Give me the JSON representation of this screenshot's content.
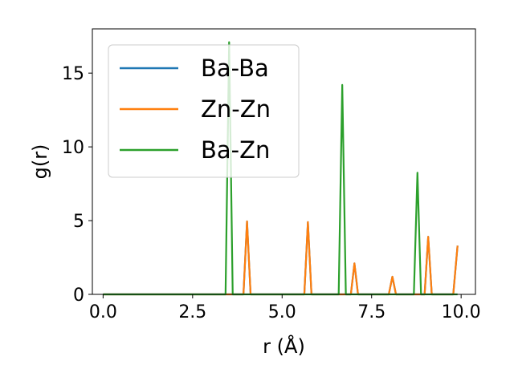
{
  "chart_data": {
    "type": "line",
    "xlabel": "r (Å)",
    "ylabel": "g(r)",
    "xlim": [
      -0.3,
      10.4
    ],
    "ylim": [
      0,
      18
    ],
    "xticks": [
      0.0,
      2.5,
      5.0,
      7.5,
      10.0
    ],
    "xtick_labels": [
      "0.0",
      "2.5",
      "5.0",
      "7.5",
      "10.0"
    ],
    "yticks": [
      0,
      5,
      10,
      15
    ],
    "ytick_labels": [
      "0",
      "5",
      "10",
      "15"
    ],
    "grid": false,
    "legend": "upper-left",
    "series": [
      {
        "name": "Ba-Ba",
        "color": "#1f77b4",
        "x": [
          0.0,
          3.92,
          4.02,
          4.12,
          5.62,
          5.72,
          5.82,
          6.92,
          7.02,
          7.12,
          7.98,
          8.08,
          8.18,
          8.98,
          9.08,
          9.18,
          9.78,
          9.9
        ],
        "y": [
          0,
          0,
          4.95,
          0,
          0,
          4.9,
          0,
          0,
          2.1,
          0,
          0,
          1.2,
          0,
          0,
          3.9,
          0,
          0,
          3.3
        ]
      },
      {
        "name": "Zn-Zn",
        "color": "#ff7f0e",
        "x": [
          0.0,
          3.92,
          4.02,
          4.12,
          5.62,
          5.72,
          5.82,
          6.92,
          7.02,
          7.12,
          7.98,
          8.08,
          8.18,
          8.98,
          9.08,
          9.18,
          9.78,
          9.9
        ],
        "y": [
          0,
          0,
          4.95,
          0,
          0,
          4.9,
          0,
          0,
          2.1,
          0,
          0,
          1.2,
          0,
          0,
          3.9,
          0,
          0,
          3.3
        ]
      },
      {
        "name": "Ba-Zn",
        "color": "#2ca02c",
        "x": [
          0.0,
          3.42,
          3.52,
          3.62,
          6.58,
          6.68,
          6.78,
          8.68,
          8.78,
          8.88,
          9.9
        ],
        "y": [
          0,
          0,
          17.1,
          0,
          0,
          14.2,
          0,
          0,
          8.25,
          0,
          0
        ]
      }
    ]
  }
}
